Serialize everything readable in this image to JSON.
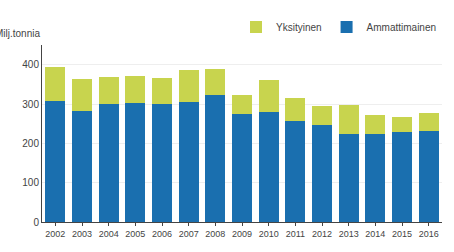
{
  "chart_data": {
    "type": "bar",
    "stacked": true,
    "ylabel": "Milj.tonnia",
    "categories": [
      "2002",
      "2003",
      "2004",
      "2005",
      "2006",
      "2007",
      "2008",
      "2009",
      "2010",
      "2011",
      "2012",
      "2013",
      "2014",
      "2015",
      "2016"
    ],
    "series": [
      {
        "name": "Ammattimainen",
        "color": "#1a6faf",
        "values": [
          308,
          283,
          300,
          303,
          300,
          306,
          322,
          274,
          280,
          257,
          246,
          223,
          225,
          229,
          231
        ]
      },
      {
        "name": "Yksityinen",
        "color": "#c8d44e",
        "values": [
          85,
          80,
          68,
          67,
          65,
          80,
          68,
          48,
          80,
          57,
          50,
          74,
          47,
          37,
          46
        ]
      }
    ],
    "ylim": [
      0,
      450
    ],
    "yticks": [
      0,
      100,
      200,
      300,
      400
    ],
    "grid": true,
    "legend": "upper right"
  }
}
